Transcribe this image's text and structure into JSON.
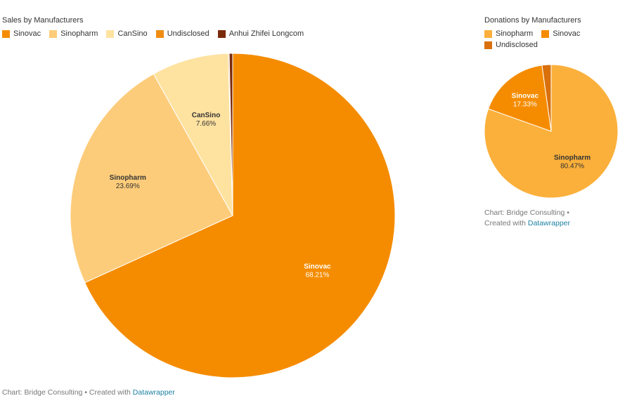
{
  "colors": {
    "Sinovac": "#f58c00",
    "Sinopharm": "#fdcc7a",
    "CanSino": "#fee2a0",
    "Undisclosed": "#f08c12",
    "Anhui Zhifei Longcom": "#7a2a0a",
    "Sinopharm_donation": "#fbb03b",
    "Sinovac_donation": "#f58c00",
    "Undisclosed_donation": "#d9700c"
  },
  "chart_data": [
    {
      "type": "pie",
      "title": "Sales by Manufacturers",
      "legend": [
        "Sinovac",
        "Sinopharm",
        "CanSino",
        "Undisclosed",
        "Anhui Zhifei Longcom"
      ],
      "slices": [
        {
          "label": "Sinovac",
          "value": 68.21,
          "display": "68.21%"
        },
        {
          "label": "Sinopharm",
          "value": 23.69,
          "display": "23.69%"
        },
        {
          "label": "CanSino",
          "value": 7.66,
          "display": "7.66%"
        },
        {
          "label": "Undisclosed",
          "value": 0.1
        },
        {
          "label": "Anhui Zhifei Longcom",
          "value": 0.34
        }
      ],
      "legend_position": "top-left"
    },
    {
      "type": "pie",
      "title": "Donations by Manufacturers",
      "legend": [
        "Sinopharm",
        "Sinovac",
        "Undisclosed"
      ],
      "slices": [
        {
          "label": "Sinopharm",
          "value": 80.47,
          "display": "80.47%"
        },
        {
          "label": "Sinovac",
          "value": 17.33,
          "display": "17.33%"
        },
        {
          "label": "Undisclosed",
          "value": 2.2
        }
      ],
      "legend_position": "top-left"
    }
  ],
  "footer_left": {
    "text": "Chart: Bridge Consulting • Created with ",
    "link": "Datawrapper"
  },
  "footer_right": {
    "line1": "Chart: Bridge Consulting •",
    "line2": "Created with ",
    "link": "Datawrapper"
  }
}
